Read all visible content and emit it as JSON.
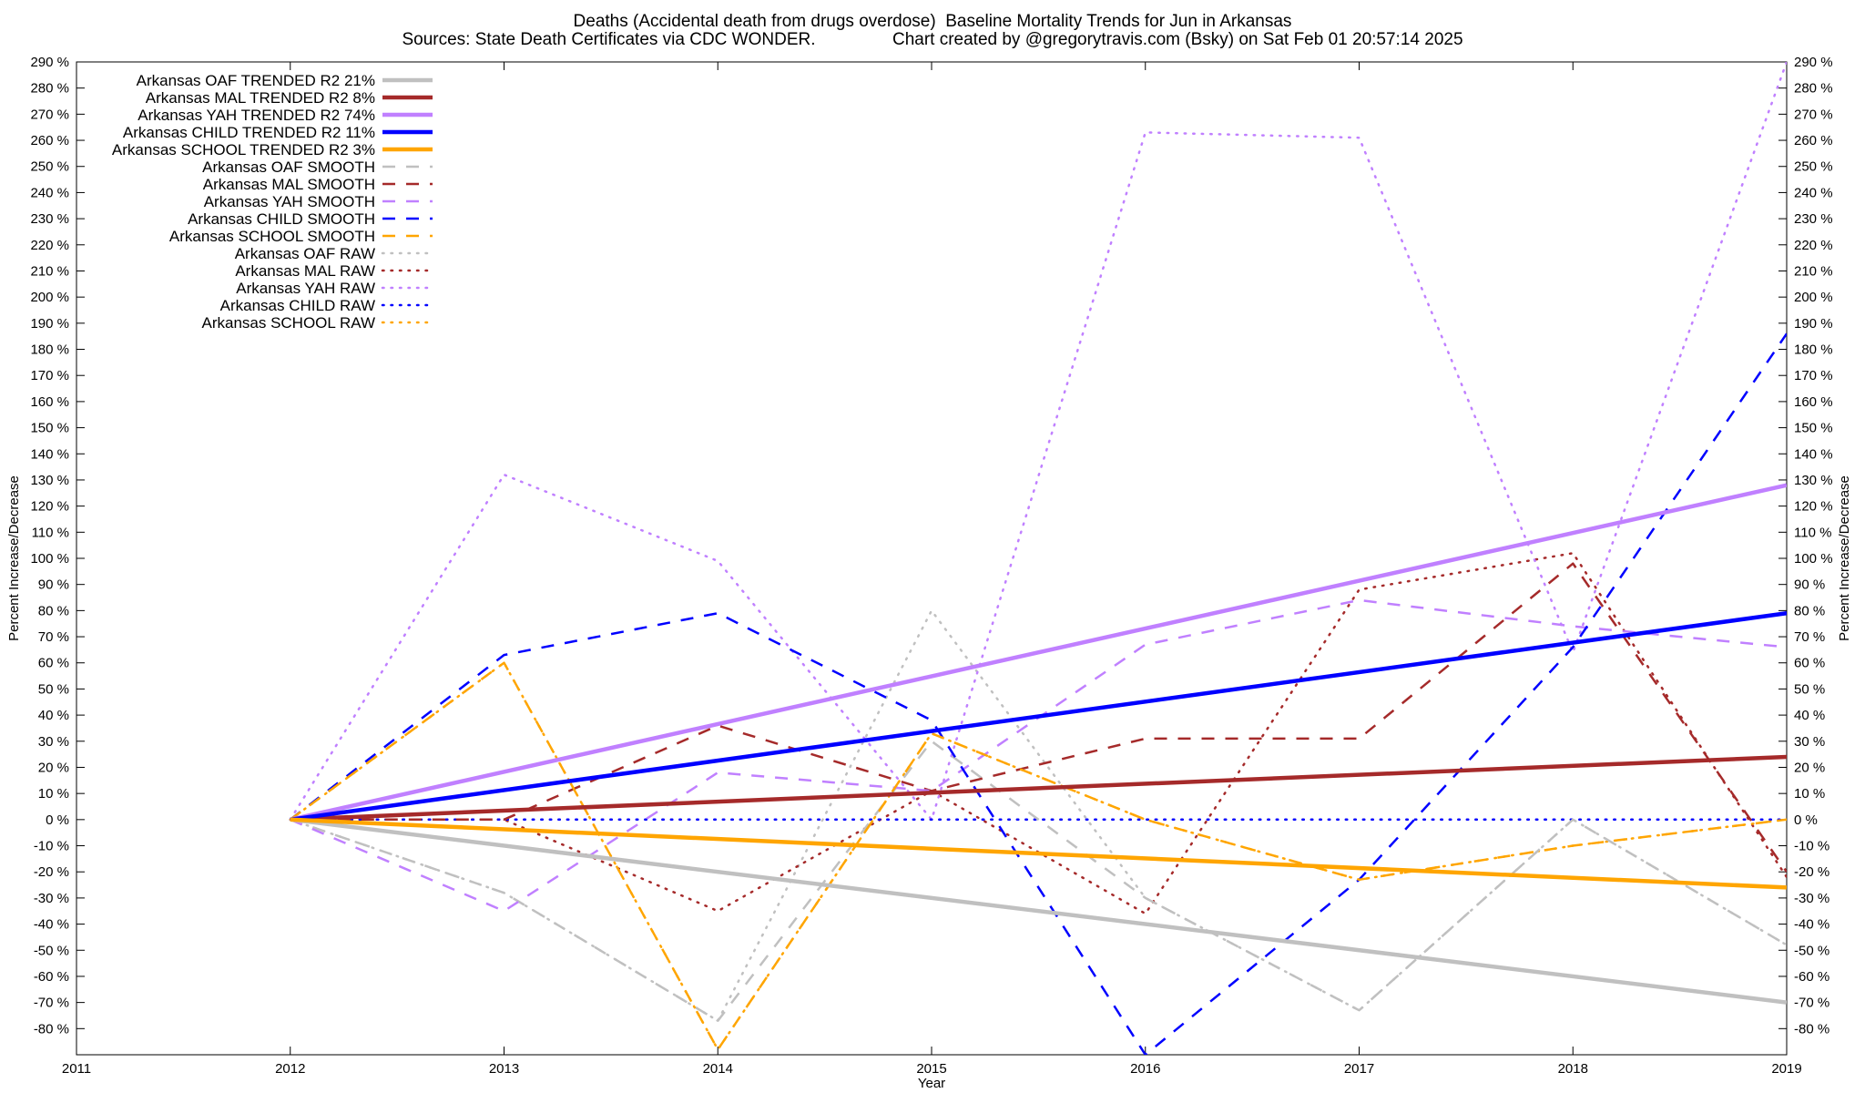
{
  "chart_data": {
    "type": "line",
    "title": "Deaths (Accidental death from drugs overdose)  Baseline Mortality Trends for Jun in Arkansas",
    "subtitle": "Sources: State Death Certificates via CDC WONDER.                Chart created by @gregorytravis.com (Bsky) on Sat Feb 01 20:57:14 2025",
    "xlabel": "Year",
    "ylabel": "Percent Increase/Decrease",
    "y2label": "Percent Increase/Decrease",
    "xlim": [
      2011,
      2019
    ],
    "ylim": [
      -90,
      290
    ],
    "x_ticks": [
      2011,
      2012,
      2013,
      2014,
      2015,
      2016,
      2017,
      2018,
      2019
    ],
    "y_ticks": [
      -80,
      -70,
      -60,
      -50,
      -40,
      -30,
      -20,
      -10,
      0,
      10,
      20,
      30,
      40,
      50,
      60,
      70,
      80,
      90,
      100,
      110,
      120,
      130,
      140,
      150,
      160,
      170,
      180,
      190,
      200,
      210,
      220,
      230,
      240,
      250,
      260,
      270,
      280,
      290
    ],
    "y_tick_suffix": " %",
    "grid": false,
    "legend_position": "top-left",
    "series": [
      {
        "name": "Arkansas OAF TRENDED R2  21%",
        "style": "solid",
        "color": "#c0c0c0",
        "x": [
          2012,
          2019
        ],
        "values": [
          0,
          -70
        ]
      },
      {
        "name": "Arkansas MAL TRENDED R2  8%",
        "style": "solid",
        "color": "#a52a2a",
        "x": [
          2012,
          2019
        ],
        "values": [
          0,
          24
        ]
      },
      {
        "name": "Arkansas YAH TRENDED R2  74%",
        "style": "solid",
        "color": "#c080ff",
        "x": [
          2012,
          2019
        ],
        "values": [
          0,
          128
        ]
      },
      {
        "name": "Arkansas CHILD TRENDED R2  11%",
        "style": "solid",
        "color": "#0000ff",
        "x": [
          2012,
          2019
        ],
        "values": [
          0,
          79
        ]
      },
      {
        "name": "Arkansas SCHOOL TRENDED R2  3%",
        "style": "solid",
        "color": "#ffa500",
        "x": [
          2012,
          2019
        ],
        "values": [
          0,
          -26
        ]
      },
      {
        "name": "Arkansas OAF SMOOTH",
        "style": "dashed",
        "color": "#c0c0c0",
        "x": [
          2012,
          2013,
          2014,
          2015,
          2016,
          2017,
          2018,
          2019
        ],
        "values": [
          0,
          -28,
          -77,
          30,
          -30,
          -73,
          0,
          -48
        ]
      },
      {
        "name": "Arkansas MAL SMOOTH",
        "style": "dashed",
        "color": "#a52a2a",
        "x": [
          2012,
          2013,
          2014,
          2015,
          2016,
          2017,
          2018,
          2019
        ],
        "values": [
          0,
          0,
          36,
          11,
          31,
          31,
          98,
          -20
        ]
      },
      {
        "name": "Arkansas YAH SMOOTH",
        "style": "dashed",
        "color": "#c080ff",
        "x": [
          2012,
          2013,
          2014,
          2015,
          2016,
          2017,
          2018,
          2019
        ],
        "values": [
          0,
          -35,
          18,
          11,
          67,
          84,
          74,
          66
        ]
      },
      {
        "name": "Arkansas CHILD SMOOTH",
        "style": "dashed",
        "color": "#0000ff",
        "x": [
          2012,
          2013,
          2014,
          2015,
          2016,
          2017,
          2018,
          2019
        ],
        "values": [
          0,
          63,
          79,
          38,
          -90,
          -23,
          66,
          186
        ]
      },
      {
        "name": "Arkansas SCHOOL SMOOTH",
        "style": "dashed",
        "color": "#ffa500",
        "x": [
          2012,
          2013,
          2014,
          2015,
          2016,
          2017,
          2018,
          2019
        ],
        "values": [
          0,
          60,
          -88,
          33,
          0,
          -23,
          -10,
          0
        ]
      },
      {
        "name": "Arkansas OAF RAW",
        "style": "dotted",
        "color": "#c0c0c0",
        "x": [
          2012,
          2013,
          2014,
          2015,
          2016,
          2017,
          2018,
          2019
        ],
        "values": [
          0,
          -28,
          -77,
          80,
          -30,
          -73,
          0,
          -48
        ]
      },
      {
        "name": "Arkansas MAL RAW",
        "style": "dotted",
        "color": "#a52a2a",
        "x": [
          2012,
          2013,
          2014,
          2015,
          2016,
          2017,
          2018,
          2019
        ],
        "values": [
          0,
          0,
          -35,
          11,
          -36,
          88,
          102,
          -22
        ]
      },
      {
        "name": "Arkansas YAH RAW",
        "style": "dotted",
        "color": "#c080ff",
        "x": [
          2012,
          2013,
          2014,
          2015,
          2016,
          2017,
          2018,
          2019
        ],
        "values": [
          0,
          132,
          99,
          0,
          263,
          261,
          64,
          290
        ]
      },
      {
        "name": "Arkansas CHILD RAW",
        "style": "dotted",
        "color": "#0000ff",
        "x": [
          2012,
          2013,
          2014,
          2015,
          2016,
          2017,
          2018,
          2019
        ],
        "values": [
          0,
          0,
          0,
          0,
          0,
          0,
          0,
          0
        ]
      },
      {
        "name": "Arkansas SCHOOL RAW",
        "style": "dotted",
        "color": "#ffa500",
        "x": [
          2012,
          2013,
          2014,
          2015,
          2016,
          2017,
          2018,
          2019
        ],
        "values": [
          0,
          60,
          -88,
          33,
          0,
          -23,
          -10,
          0
        ]
      }
    ]
  }
}
